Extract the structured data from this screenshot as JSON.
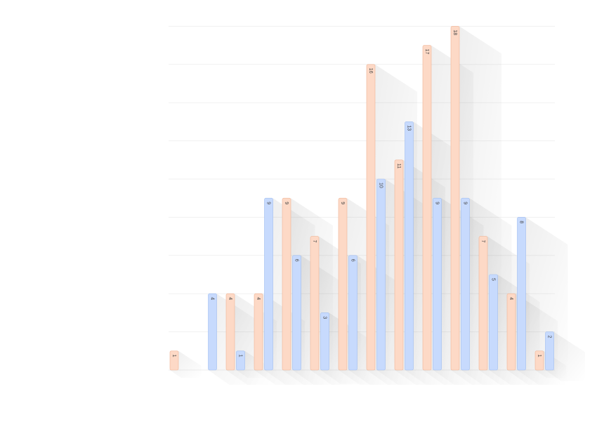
{
  "chart_data": {
    "type": "bar",
    "categories": [
      "",
      "",
      "",
      "",
      "",
      "",
      "",
      "",
      "",
      "",
      "",
      "",
      "",
      ""
    ],
    "series": [
      {
        "color": "#c7dafd",
        "stroke": "#9fbdf0",
        "values": [
          0,
          4,
          1,
          9,
          6,
          3,
          6,
          10,
          13,
          9,
          9,
          5,
          8,
          2
        ]
      },
      {
        "color": "#fdd9c6",
        "stroke": "#f0b596",
        "values": [
          1,
          0,
          4,
          4,
          9,
          7,
          9,
          16,
          11,
          17,
          18,
          7,
          4,
          1
        ]
      }
    ],
    "ylim": [
      0,
      18
    ],
    "grid": true,
    "data_labels": true,
    "legend": "none",
    "title": "",
    "xlabel": "",
    "ylabel": ""
  }
}
